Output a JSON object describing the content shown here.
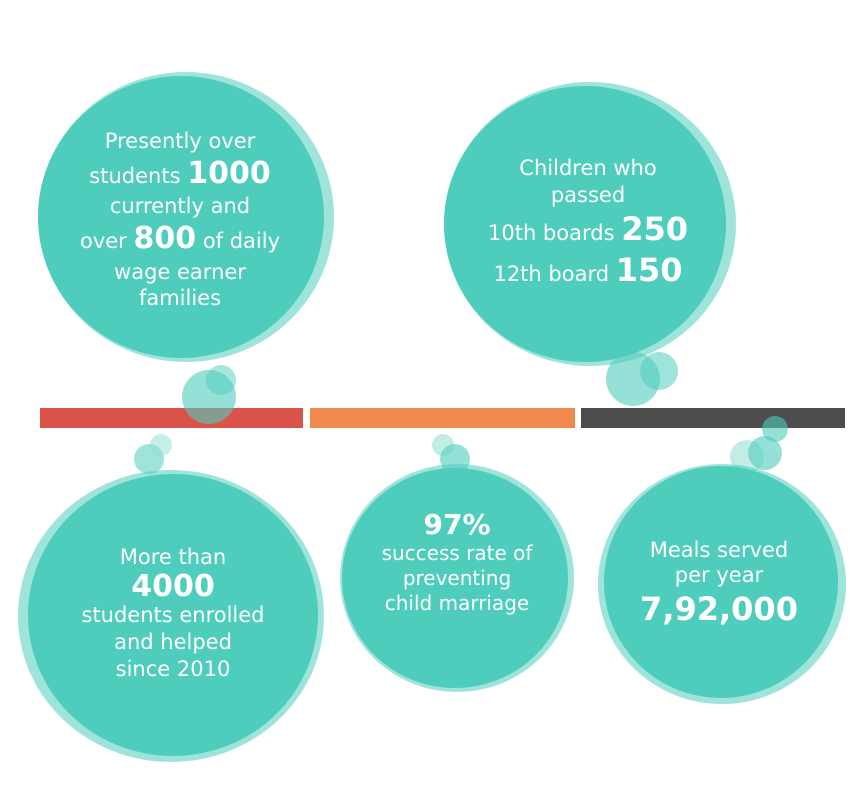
{
  "colors": {
    "teal": "#4ecdbd",
    "teal_light": "#8fdfd4",
    "bar_red": "#d9534a",
    "bar_orange": "#f0894e",
    "bar_gray": "#4d4d4d"
  },
  "timeline": {
    "segments": [
      {
        "name": "segment-1",
        "color": "#d9534a"
      },
      {
        "name": "segment-2",
        "color": "#f0894e"
      },
      {
        "name": "segment-3",
        "color": "#4d4d4d"
      }
    ]
  },
  "stat1": {
    "line1": "Presently over",
    "line2_pre": "students",
    "line2_num": "1000",
    "line3": "currently and",
    "line4_pre": "over",
    "line4_num": "800",
    "line4_post": "of daily",
    "line5": "wage earner",
    "line6": "families"
  },
  "stat2": {
    "line1": "Children who",
    "line2": "passed",
    "line3_pre": "10th boards",
    "line3_num": "250",
    "line4_pre": "12th board",
    "line4_num": "150"
  },
  "stat3": {
    "line1": "More than",
    "num": "4000",
    "line2": "students enrolled",
    "line3": "and helped",
    "line4": "since 2010"
  },
  "stat4": {
    "num": "97%",
    "line1": "success rate of",
    "line2": "preventing",
    "line3": "child marriage"
  },
  "stat5": {
    "line1": "Meals served",
    "line2": "per year",
    "num": "7,92,000"
  }
}
